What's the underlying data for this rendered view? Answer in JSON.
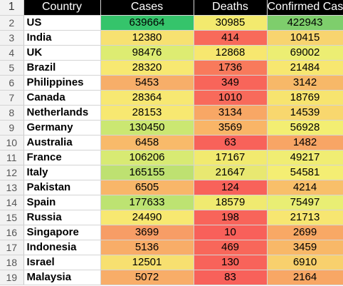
{
  "sheet": {
    "headers": [
      "Country",
      "Cases",
      "Deaths",
      "Confirmed Cases"
    ],
    "header_row_number": "1",
    "rows": [
      {
        "n": "2",
        "country": "US",
        "cases": "639664",
        "deaths": "30985",
        "confirmed": "422943",
        "colors": [
          "#35c46b",
          "#f3ea6e",
          "#7ece6c"
        ]
      },
      {
        "n": "3",
        "country": "India",
        "cases": "12380",
        "deaths": "414",
        "confirmed": "10415",
        "colors": [
          "#f7e171",
          "#f86a5a",
          "#f8d46f"
        ]
      },
      {
        "n": "4",
        "country": "UK",
        "cases": "98476",
        "deaths": "12868",
        "confirmed": "69002",
        "colors": [
          "#ddec72",
          "#f7e76f",
          "#ecee73"
        ]
      },
      {
        "n": "5",
        "country": "Brazil",
        "cases": "28320",
        "deaths": "1736",
        "confirmed": "21484",
        "colors": [
          "#f7e871",
          "#f87a5c",
          "#f7e770"
        ]
      },
      {
        "n": "6",
        "country": "Philippines",
        "cases": "5453",
        "deaths": "349",
        "confirmed": "3142",
        "colors": [
          "#f7ae69",
          "#f8655a",
          "#f7b868"
        ]
      },
      {
        "n": "7",
        "country": "Canada",
        "cases": "28364",
        "deaths": "1010",
        "confirmed": "18769",
        "colors": [
          "#f7e872",
          "#f86a5b",
          "#f7e46f"
        ]
      },
      {
        "n": "8",
        "country": "Netherlands",
        "cases": "28153",
        "deaths": "3134",
        "confirmed": "14539",
        "colors": [
          "#f7e871",
          "#f8a765",
          "#f8d76e"
        ]
      },
      {
        "n": "9",
        "country": "Germany",
        "cases": "130450",
        "deaths": "3569",
        "confirmed": "56928",
        "colors": [
          "#cbe772",
          "#f9b567",
          "#f3ee72"
        ]
      },
      {
        "n": "10",
        "country": "Australia",
        "cases": "6458",
        "deaths": "63",
        "confirmed": "1482",
        "colors": [
          "#f8ba6a",
          "#f8625a",
          "#f8a565"
        ]
      },
      {
        "n": "11",
        "country": "France",
        "cases": "106206",
        "deaths": "17167",
        "confirmed": "49217",
        "colors": [
          "#d8ea73",
          "#f1ea6f",
          "#f0ed73"
        ]
      },
      {
        "n": "12",
        "country": "Italy",
        "cases": "165155",
        "deaths": "21647",
        "confirmed": "54581",
        "colors": [
          "#bee171",
          "#e8e871",
          "#f4ee73"
        ]
      },
      {
        "n": "13",
        "country": "Pakistan",
        "cases": "6505",
        "deaths": "124",
        "confirmed": "4214",
        "colors": [
          "#f8b669",
          "#f8625a",
          "#f8bf6a"
        ]
      },
      {
        "n": "14",
        "country": "Spain",
        "cases": "177633",
        "deaths": "18579",
        "confirmed": "75497",
        "colors": [
          "#bde372",
          "#f0ea70",
          "#e9ee74"
        ]
      },
      {
        "n": "15",
        "country": "Russia",
        "cases": "24490",
        "deaths": "198",
        "confirmed": "21713",
        "colors": [
          "#f7e871",
          "#f8645a",
          "#f7e671"
        ]
      },
      {
        "n": "16",
        "country": "Singapore",
        "cases": "3699",
        "deaths": "10",
        "confirmed": "2699",
        "colors": [
          "#f79d66",
          "#f8605a",
          "#f8a865"
        ]
      },
      {
        "n": "17",
        "country": "Indonesia",
        "cases": "5136",
        "deaths": "469",
        "confirmed": "3459",
        "colors": [
          "#f8ad68",
          "#f8675a",
          "#f8b868"
        ]
      },
      {
        "n": "18",
        "country": "Israel",
        "cases": "12501",
        "deaths": "130",
        "confirmed": "6910",
        "colors": [
          "#f7e070",
          "#f8635a",
          "#f8d06d"
        ]
      },
      {
        "n": "19",
        "country": "Malaysia",
        "cases": "5072",
        "deaths": "83",
        "confirmed": "2164",
        "colors": [
          "#f8ad68",
          "#f8615a",
          "#f8a765"
        ]
      }
    ]
  }
}
